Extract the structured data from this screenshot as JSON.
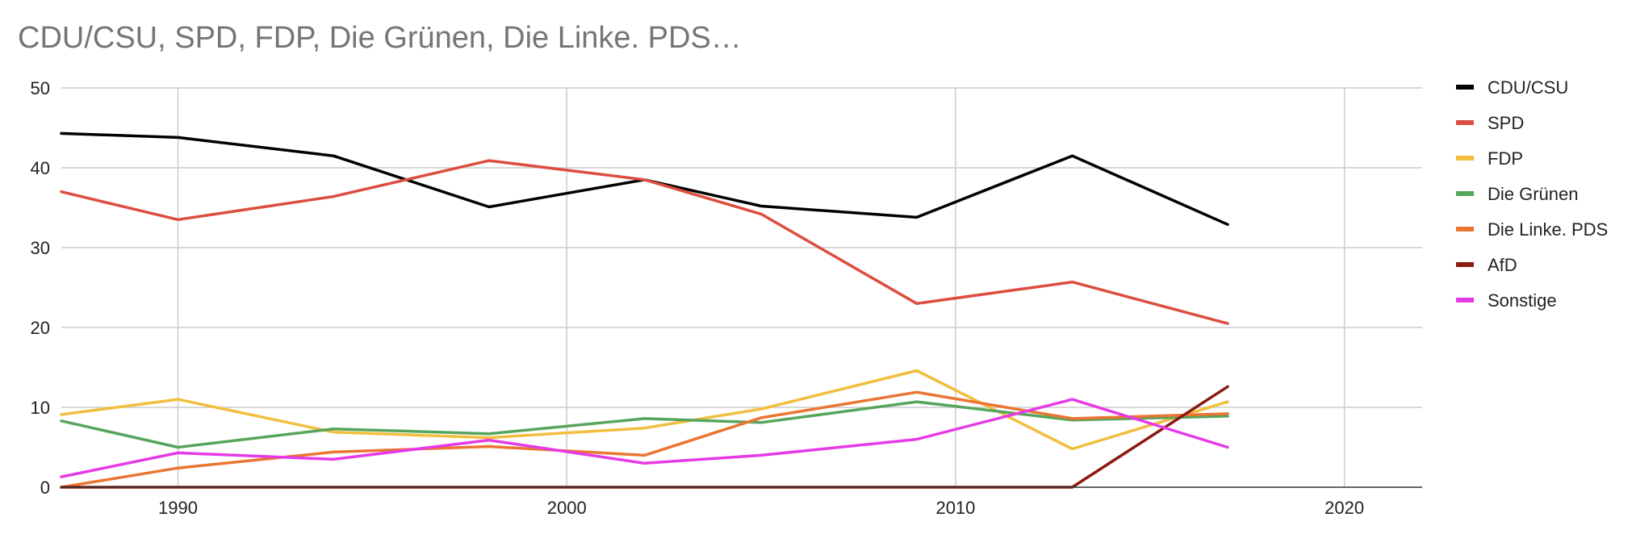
{
  "chart_data": {
    "type": "line",
    "title": "CDU/CSU, SPD, FDP, Die Grünen, Die Linke. PDS…",
    "xlabel": "",
    "ylabel": "",
    "xlim": [
      1987,
      2022
    ],
    "ylim": [
      0,
      50
    ],
    "x_ticks": [
      1990,
      2000,
      2010,
      2020
    ],
    "y_ticks": [
      0,
      10,
      20,
      30,
      40,
      50
    ],
    "grid": true,
    "legend_position": "right",
    "x": [
      1987,
      1990,
      1994,
      1998,
      2002,
      2005,
      2009,
      2013,
      2017
    ],
    "series": [
      {
        "name": "CDU/CSU",
        "color": "#000000",
        "values": [
          44.3,
          43.8,
          41.5,
          35.1,
          38.5,
          35.2,
          33.8,
          41.5,
          32.9
        ]
      },
      {
        "name": "SPD",
        "color": "#dc4e3f",
        "values": [
          37.0,
          33.5,
          36.4,
          40.9,
          38.5,
          34.2,
          23.0,
          25.7,
          20.5
        ]
      },
      {
        "name": "FDP",
        "color": "#f1be3e",
        "values": [
          9.1,
          11.0,
          6.9,
          6.2,
          7.4,
          9.8,
          14.6,
          4.8,
          10.7
        ]
      },
      {
        "name": "Die Grünen",
        "color": "#57a55c",
        "values": [
          8.3,
          5.0,
          7.3,
          6.7,
          8.6,
          8.1,
          10.7,
          8.4,
          8.9
        ]
      },
      {
        "name": "Die Linke. PDS",
        "color": "#eb7532",
        "values": [
          0.0,
          2.4,
          4.4,
          5.1,
          4.0,
          8.7,
          11.9,
          8.6,
          9.2
        ]
      },
      {
        "name": "AfD",
        "color": "#8b1a10",
        "values": [
          0.0,
          0.0,
          0.0,
          0.0,
          0.0,
          0.0,
          0.0,
          0.0,
          12.6
        ]
      },
      {
        "name": "Sonstige",
        "color": "#e63ae6",
        "values": [
          1.3,
          4.3,
          3.5,
          5.9,
          3.0,
          4.0,
          6.0,
          11.0,
          5.0
        ]
      }
    ]
  }
}
